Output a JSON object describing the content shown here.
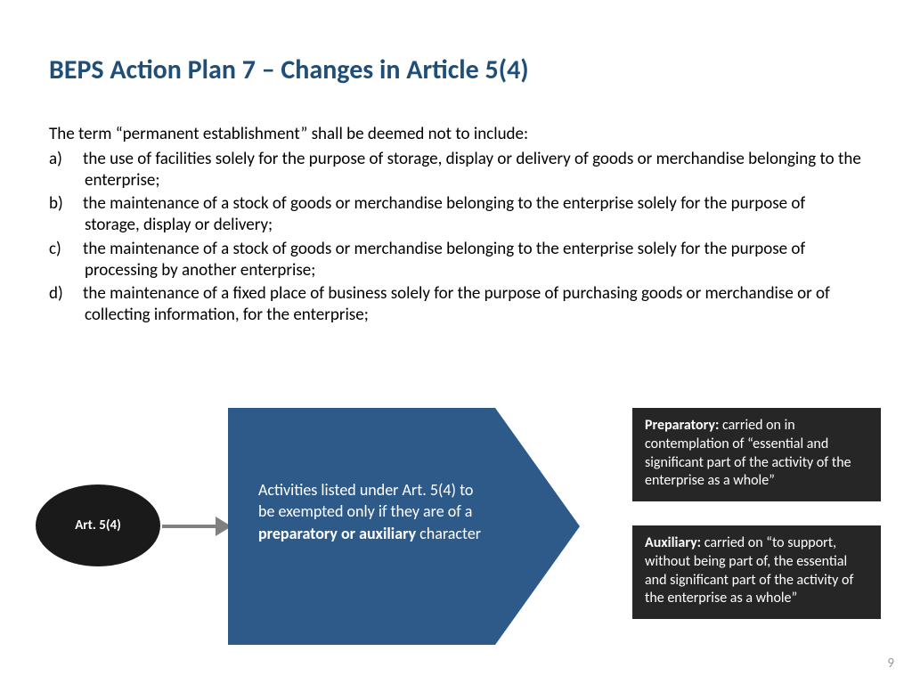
{
  "title": "BEPS Action Plan 7 – Changes in Article 5(4)",
  "intro": "The term “permanent establishment” shall be deemed not to include:",
  "items": [
    {
      "marker": "a)",
      "text": "the use of facilities solely for the purpose of storage, display or delivery of goods or merchandise belonging to the enterprise;"
    },
    {
      "marker": "b)",
      "text": "the maintenance of a stock of goods or merchandise belonging to the enterprise solely for the purpose of storage, display or delivery;"
    },
    {
      "marker": "c)",
      "text": "the maintenance of a stock of goods or merchandise belonging to the enterprise solely for the purpose of processing by another enterprise;"
    },
    {
      "marker": "d)",
      "text": "the maintenance of a fixed place of business solely for the purpose of purchasing goods or merchandise or of collecting information, for the enterprise;"
    }
  ],
  "diagram": {
    "ellipse_label": "Art. 5(4)",
    "chevron_prefix": "Activities listed under Art. 5(4) to be exempted only if they are of a ",
    "chevron_bold": "preparatory or auxiliary",
    "chevron_suffix": " character",
    "box1_bold": "Preparatory:",
    "box1_text": " carried on in contemplation of “essential and significant part of the activity of the enterprise as a whole”",
    "box2_bold": "Auxiliary:",
    "box2_text": " carried on “to support, without being part of, the essential and significant part of the activity of the enterprise as a whole”"
  },
  "page_number": "9",
  "style": {
    "title_color": "#1f4e79",
    "title_fontsize": 30,
    "body_fontsize": 19,
    "chevron_color": "#2e5a8a",
    "ellipse_color": "#1a1a1a",
    "box_color": "#262626",
    "arrow_color": "#808080",
    "background_color": "#ffffff",
    "page_num_color": "#9a9a9a",
    "box_fontsize": 16,
    "chevron_fontsize": 18
  }
}
